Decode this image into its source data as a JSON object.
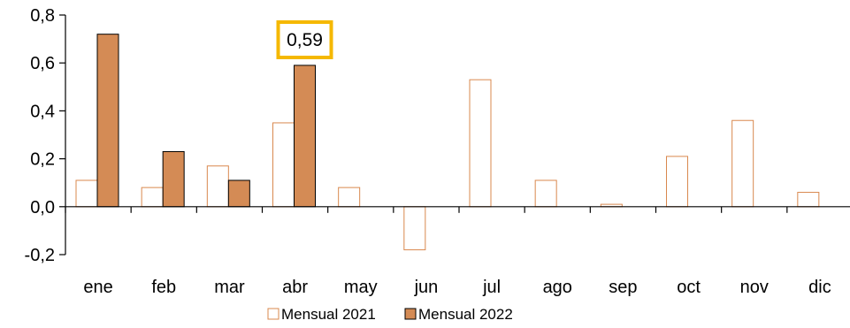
{
  "chart_data": {
    "type": "bar",
    "categories": [
      "ene",
      "feb",
      "mar",
      "abr",
      "may",
      "jun",
      "jul",
      "ago",
      "sep",
      "oct",
      "nov",
      "dic"
    ],
    "series": [
      {
        "name": "Mensual 2021",
        "values": [
          0.11,
          0.08,
          0.17,
          0.35,
          0.08,
          -0.18,
          0.53,
          0.11,
          0.01,
          0.21,
          0.36,
          0.06
        ],
        "fill": "#ffffff",
        "stroke": "#d9884e"
      },
      {
        "name": "Mensual 2022",
        "values": [
          0.72,
          0.23,
          0.11,
          0.59,
          null,
          null,
          null,
          null,
          null,
          null,
          null,
          null
        ],
        "fill": "#d48b55",
        "stroke": "#000000"
      }
    ],
    "ylim": [
      -0.2,
      0.8
    ],
    "yticks": [
      "-0,2",
      "0,0",
      "0,2",
      "0,4",
      "0,6",
      "0,8"
    ],
    "ytick_values": [
      -0.2,
      0,
      0.2,
      0.4,
      0.6,
      0.8
    ],
    "annotation": {
      "text": "0,59",
      "category": "abr",
      "series": "Mensual 2022",
      "border_color": "#f5b800"
    },
    "legend_position": "bottom-center",
    "grid": false
  }
}
